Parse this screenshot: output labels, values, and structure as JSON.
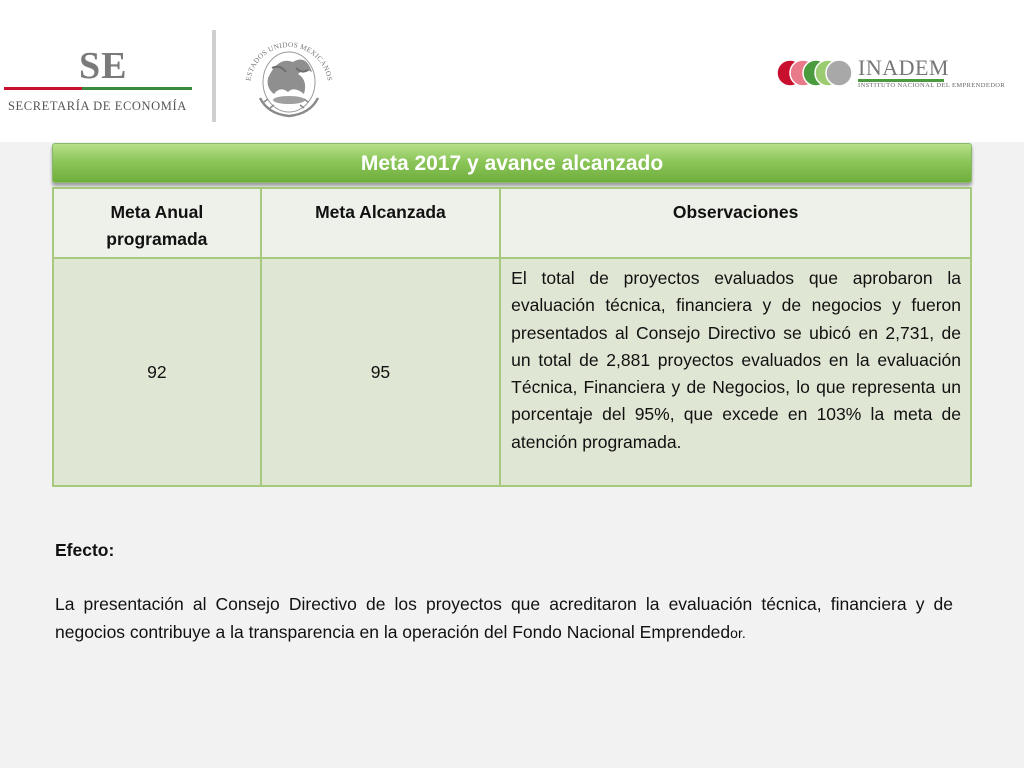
{
  "header": {
    "se_logo": {
      "mark": "SE",
      "name": "SECRETARÍA DE ECONOMÍA"
    },
    "seal": {
      "text": "ESTADOS UNIDOS MEXICANOS"
    },
    "inadem_logo": {
      "name": "INADEM",
      "subtitle": "INSTITUTO NACIONAL DEL EMPRENDEDOR",
      "circle_colors": [
        "#c8102e",
        "#e87a8a",
        "#4a9a3e",
        "#9ccc72",
        "#a8a8a8"
      ]
    }
  },
  "banner": {
    "title": "Meta 2017 y avance alcanzado"
  },
  "table": {
    "headers": [
      "Meta Anual programada",
      "Meta Alcanzada",
      "Observaciones"
    ],
    "row": {
      "meta_anual": "92",
      "meta_alcanzada": "95",
      "observaciones": "El total de proyectos evaluados que aprobaron la evaluación técnica, financiera y de negocios y fueron presentados al Consejo Directivo se ubicó en 2,731, de un total de 2,881 proyectos evaluados en la evaluación Técnica, Financiera y de Negocios, lo que representa un porcentaje del 95%, que excede en 103% la meta de atención programada."
    }
  },
  "efecto": {
    "label": "Efecto:",
    "text": "La presentación al Consejo Directivo de los proyectos que acreditaron la evaluación técnica, financiera y de negocios contribuye a la transparencia en la operación del Fondo Nacional Emprended",
    "text_tail": "or."
  },
  "colors": {
    "banner_green": "#8cc65a",
    "table_border": "#a7c97e",
    "cell_fill": "#dfe6d3",
    "header_fill": "#eef1ea"
  }
}
